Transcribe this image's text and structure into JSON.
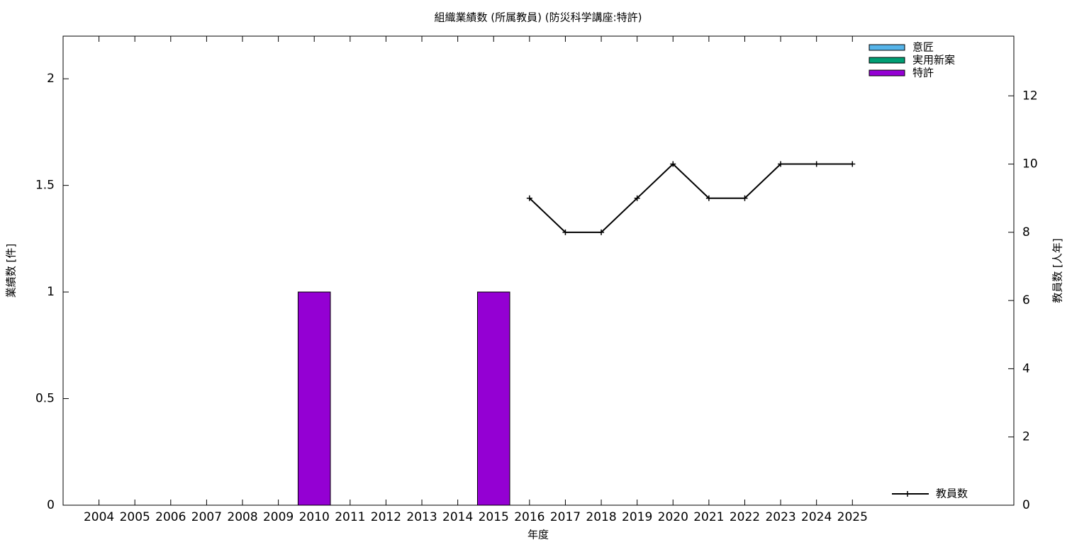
{
  "chart_data": {
    "type": "bar",
    "stacked": true,
    "title": "組織業績数 (所属教員) (防災科学講座:特許)",
    "x_label": "年度",
    "y_label": "業績数 [件]",
    "y2_label": "教員数 [人年]",
    "categories": [
      "2004",
      "2005",
      "2006",
      "2007",
      "2008",
      "2009",
      "2010",
      "2011",
      "2012",
      "2013",
      "2014",
      "2015",
      "2016",
      "2017",
      "2018",
      "2019",
      "2020",
      "2021",
      "2022",
      "2023",
      "2024",
      "2025"
    ],
    "series": [
      {
        "name": "意匠",
        "color": "#56b4e9",
        "values": [
          0,
          0,
          0,
          0,
          0,
          0,
          0,
          0,
          0,
          0,
          0,
          0,
          0,
          0,
          0,
          0,
          0,
          0,
          0,
          0,
          0,
          0
        ]
      },
      {
        "name": "実用新案",
        "color": "#009e73",
        "values": [
          0,
          0,
          0,
          0,
          0,
          0,
          0,
          0,
          0,
          0,
          0,
          0,
          0,
          0,
          0,
          0,
          0,
          0,
          0,
          0,
          0,
          0
        ]
      },
      {
        "name": "特許",
        "color": "#9400d3",
        "values": [
          0,
          0,
          0,
          0,
          0,
          0,
          1,
          0,
          0,
          0,
          0,
          1,
          0,
          0,
          0,
          0,
          0,
          0,
          0,
          0,
          0,
          0
        ]
      },
      {
        "name": "教員数",
        "color": "#000000",
        "type": "line",
        "axis": "y2",
        "values": [
          null,
          null,
          null,
          null,
          null,
          null,
          null,
          null,
          null,
          null,
          null,
          null,
          9,
          8,
          8,
          9,
          10,
          9,
          9,
          10,
          10,
          10
        ]
      }
    ],
    "ylim": [
      0,
      2.2
    ],
    "yticks": [
      0,
      0.5,
      1,
      1.5,
      2
    ],
    "y2lim": [
      0,
      13.75
    ],
    "y2ticks": [
      0,
      2,
      4,
      6,
      8,
      10,
      12
    ],
    "grid": false,
    "legend": "upper right"
  }
}
